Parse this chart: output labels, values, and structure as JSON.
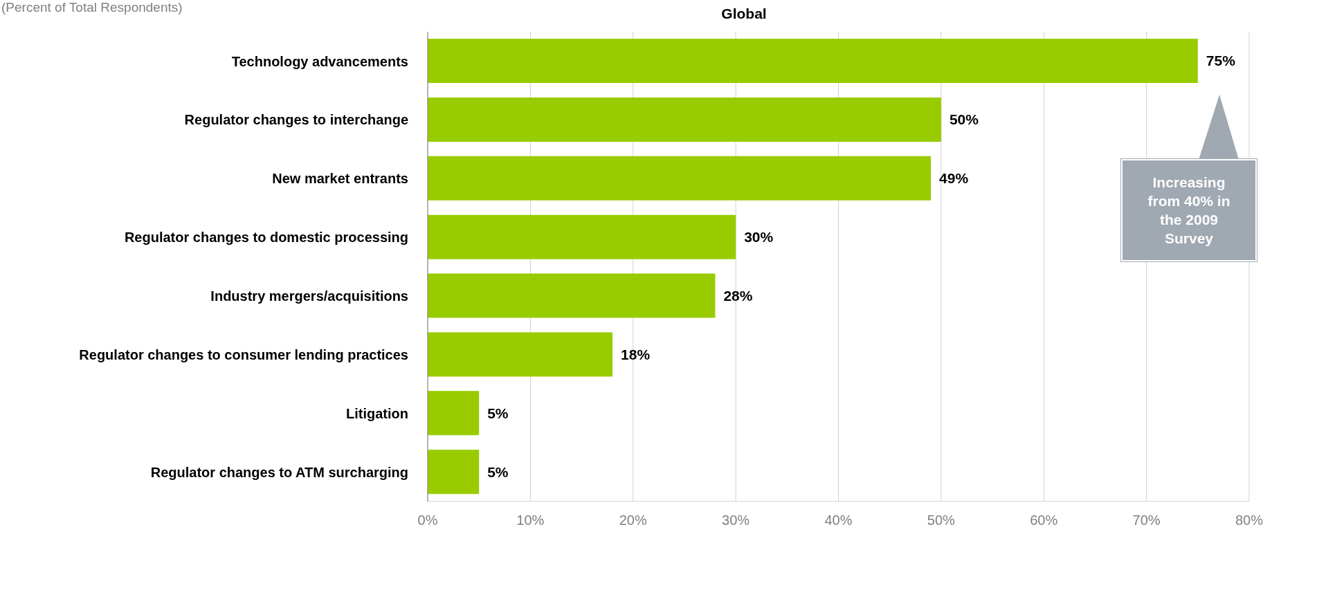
{
  "chart_data": {
    "type": "bar",
    "orientation": "horizontal",
    "title": "Global",
    "subtitle": "(Percent of Total Respondents)",
    "categories": [
      "Technology advancements",
      "Regulator changes to interchange",
      "New market entrants",
      "Regulator changes to domestic processing",
      "Industry mergers/acquisitions",
      "Regulator changes to consumer lending practices",
      "Litigation",
      "Regulator changes to ATM surcharging"
    ],
    "values": [
      75,
      50,
      49,
      30,
      28,
      18,
      5,
      5
    ],
    "value_labels": [
      "75%",
      "50%",
      "49%",
      "30%",
      "28%",
      "18%",
      "5%",
      "5%"
    ],
    "color": "#99cc00",
    "xlim": [
      0,
      80
    ],
    "xticks": [
      {
        "value": 0,
        "label": "0%"
      },
      {
        "value": 10,
        "label": "10%"
      },
      {
        "value": 20,
        "label": "20%"
      },
      {
        "value": 30,
        "label": "30%"
      },
      {
        "value": 40,
        "label": "40%"
      },
      {
        "value": 50,
        "label": "50%"
      },
      {
        "value": 60,
        "label": "60%"
      },
      {
        "value": 70,
        "label": "70%"
      },
      {
        "value": 80,
        "label": "80%"
      }
    ],
    "grid": "x",
    "annotations": [
      "Increasing from 40% in the 2009 Survey"
    ]
  }
}
